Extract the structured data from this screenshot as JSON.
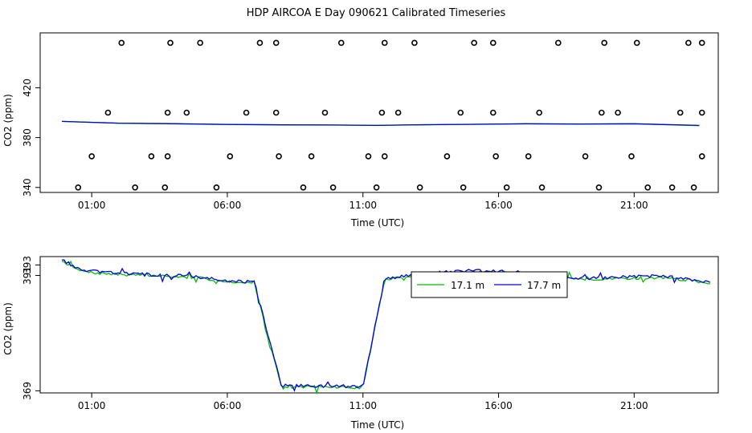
{
  "title": "HDP AIRCOA E  Day 090621  Calibrated Timeseries",
  "colors": {
    "green": "#00c000",
    "blue": "#0000e0",
    "black": "#000000"
  },
  "chart_data": [
    {
      "type": "line",
      "xlabel": "Time (UTC)",
      "ylabel": "CO2 (ppm)",
      "xlim": [
        -0.9,
        24.1
      ],
      "ylim": [
        336,
        464
      ],
      "x_ticks": [
        1,
        6,
        11,
        16,
        21
      ],
      "x_tick_labels": [
        "01:00",
        "06:00",
        "11:00",
        "16:00",
        "21:00"
      ],
      "y_ticks": [
        340,
        380,
        420
      ],
      "grid": false,
      "series": [
        {
          "color": "#00c000",
          "x": [
            -0.1,
            2,
            4,
            6,
            8,
            10,
            11.5,
            13,
            15,
            17,
            19,
            21,
            23.4
          ],
          "y": [
            393,
            391.5,
            391,
            390.5,
            390.2,
            390,
            389.8,
            390.2,
            390.6,
            391,
            390.8,
            391,
            389.6
          ]
        },
        {
          "color": "#0000e0",
          "x": [
            -0.1,
            2,
            4,
            6,
            8,
            10,
            11.5,
            13,
            15,
            17,
            19,
            21,
            23.4
          ],
          "y": [
            393,
            391.6,
            391.2,
            390.6,
            390.2,
            390.1,
            389.8,
            390.3,
            390.7,
            391.1,
            390.9,
            391.1,
            389.8
          ]
        }
      ],
      "circles": [
        {
          "x": 0.5,
          "y": 340
        },
        {
          "x": 2.6,
          "y": 340
        },
        {
          "x": 3.7,
          "y": 340
        },
        {
          "x": 5.6,
          "y": 340
        },
        {
          "x": 8.8,
          "y": 340
        },
        {
          "x": 9.9,
          "y": 340
        },
        {
          "x": 11.5,
          "y": 340
        },
        {
          "x": 13.1,
          "y": 340
        },
        {
          "x": 14.7,
          "y": 340
        },
        {
          "x": 16.3,
          "y": 340
        },
        {
          "x": 17.6,
          "y": 340
        },
        {
          "x": 19.7,
          "y": 340
        },
        {
          "x": 21.5,
          "y": 340
        },
        {
          "x": 22.4,
          "y": 340
        },
        {
          "x": 23.2,
          "y": 340
        },
        {
          "x": 1,
          "y": 365
        },
        {
          "x": 3.2,
          "y": 365
        },
        {
          "x": 3.8,
          "y": 365
        },
        {
          "x": 6.1,
          "y": 365
        },
        {
          "x": 7.9,
          "y": 365
        },
        {
          "x": 9.1,
          "y": 365
        },
        {
          "x": 11.2,
          "y": 365
        },
        {
          "x": 11.8,
          "y": 365
        },
        {
          "x": 14.1,
          "y": 365
        },
        {
          "x": 15.9,
          "y": 365
        },
        {
          "x": 17.1,
          "y": 365
        },
        {
          "x": 19.2,
          "y": 365
        },
        {
          "x": 20.9,
          "y": 365
        },
        {
          "x": 23.5,
          "y": 365
        },
        {
          "x": 1.6,
          "y": 400
        },
        {
          "x": 3.8,
          "y": 400
        },
        {
          "x": 4.5,
          "y": 400
        },
        {
          "x": 6.7,
          "y": 400
        },
        {
          "x": 7.8,
          "y": 400
        },
        {
          "x": 9.6,
          "y": 400
        },
        {
          "x": 11.7,
          "y": 400
        },
        {
          "x": 12.3,
          "y": 400
        },
        {
          "x": 14.6,
          "y": 400
        },
        {
          "x": 15.8,
          "y": 400
        },
        {
          "x": 17.5,
          "y": 400
        },
        {
          "x": 19.8,
          "y": 400
        },
        {
          "x": 20.4,
          "y": 400
        },
        {
          "x": 22.7,
          "y": 400
        },
        {
          "x": 23.5,
          "y": 400
        },
        {
          "x": 2.1,
          "y": 456
        },
        {
          "x": 3.9,
          "y": 456
        },
        {
          "x": 5,
          "y": 456
        },
        {
          "x": 7.2,
          "y": 456
        },
        {
          "x": 7.8,
          "y": 456
        },
        {
          "x": 10.2,
          "y": 456
        },
        {
          "x": 11.8,
          "y": 456
        },
        {
          "x": 12.9,
          "y": 456
        },
        {
          "x": 15.1,
          "y": 456
        },
        {
          "x": 15.8,
          "y": 456
        },
        {
          "x": 18.2,
          "y": 456
        },
        {
          "x": 19.9,
          "y": 456
        },
        {
          "x": 21.1,
          "y": 456
        },
        {
          "x": 23,
          "y": 456
        },
        {
          "x": 23.5,
          "y": 456
        }
      ]
    },
    {
      "type": "line",
      "xlabel": "Time (UTC)",
      "ylabel": "CO2 (ppm)",
      "xlim": [
        -0.9,
        24.1
      ],
      "ylim": [
        368.6,
        394.6
      ],
      "x_ticks": [
        1,
        6,
        11,
        16,
        21
      ],
      "x_tick_labels": [
        "01:00",
        "06:00",
        "11:00",
        "16:00",
        "21:00"
      ],
      "y_ticks": [
        369,
        391,
        393
      ],
      "y_tick_labels": [
        "369",
        "391",
        "393"
      ],
      "grid": false,
      "legend": {
        "placement": "top-center",
        "entries": [
          {
            "label": "17.1 m",
            "color": "#00c000"
          },
          {
            "label": "17.7 m",
            "color": "#0000e0"
          }
        ]
      },
      "series": [
        {
          "name": "17.1 m",
          "color": "#00c000",
          "seed": 7,
          "x": [
            -0.1,
            0.5,
            1,
            2,
            3,
            4,
            5,
            6,
            7,
            8,
            9,
            10,
            11,
            11.8,
            13,
            14,
            15,
            16,
            17,
            18,
            19,
            20,
            21,
            22,
            23,
            23.8
          ],
          "y": [
            393.8,
            392.0,
            391.5,
            391.2,
            391.0,
            390.8,
            390.5,
            389.9,
            389.5,
            369.6,
            369.8,
            369.7,
            369.6,
            390.2,
            391.0,
            391.3,
            391.6,
            391.6,
            391.4,
            390.8,
            390.2,
            390.3,
            390.5,
            390.6,
            390.1,
            389.5
          ],
          "noise": 0.25
        },
        {
          "name": "17.7 m",
          "color": "#0000e0",
          "seed": 13,
          "x": [
            -0.1,
            0.5,
            1,
            2,
            3,
            4,
            5,
            6,
            7,
            8,
            9,
            10,
            11,
            11.8,
            13,
            14,
            15,
            16,
            17,
            18,
            19,
            20,
            21,
            22,
            23,
            23.8
          ],
          "y": [
            394.1,
            392.2,
            391.8,
            391.4,
            391.2,
            391.0,
            390.7,
            390.0,
            389.7,
            369.8,
            370.0,
            369.9,
            369.8,
            390.4,
            391.2,
            391.6,
            391.9,
            391.8,
            391.6,
            391.0,
            390.5,
            390.5,
            390.8,
            390.9,
            390.3,
            389.8
          ],
          "noise": 0.3
        }
      ]
    }
  ]
}
